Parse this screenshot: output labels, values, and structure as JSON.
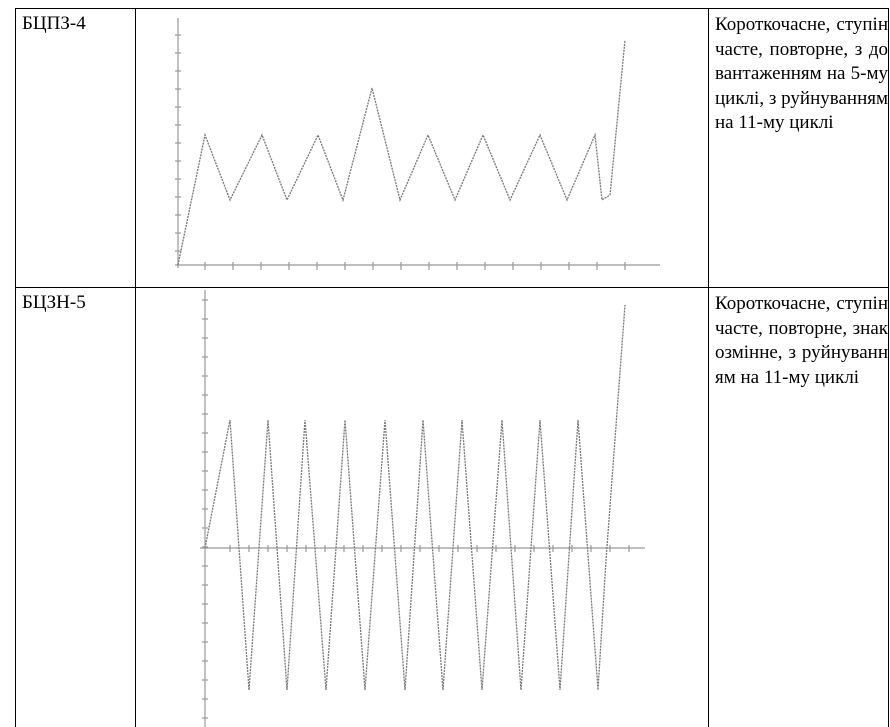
{
  "table": {
    "rows": [
      [
        "БЦПЗ-4",
        "Короткочасне, ступінчасте, повторне, з довантаженням на 5-му циклі, з руйнуванням на 11-му циклі"
      ],
      [
        "БЦЗН-5",
        "Короткочасне, ступінчасте, повторне, знакозмінне, з руйнуванням на 11-му циклі"
      ]
    ]
  }
}
